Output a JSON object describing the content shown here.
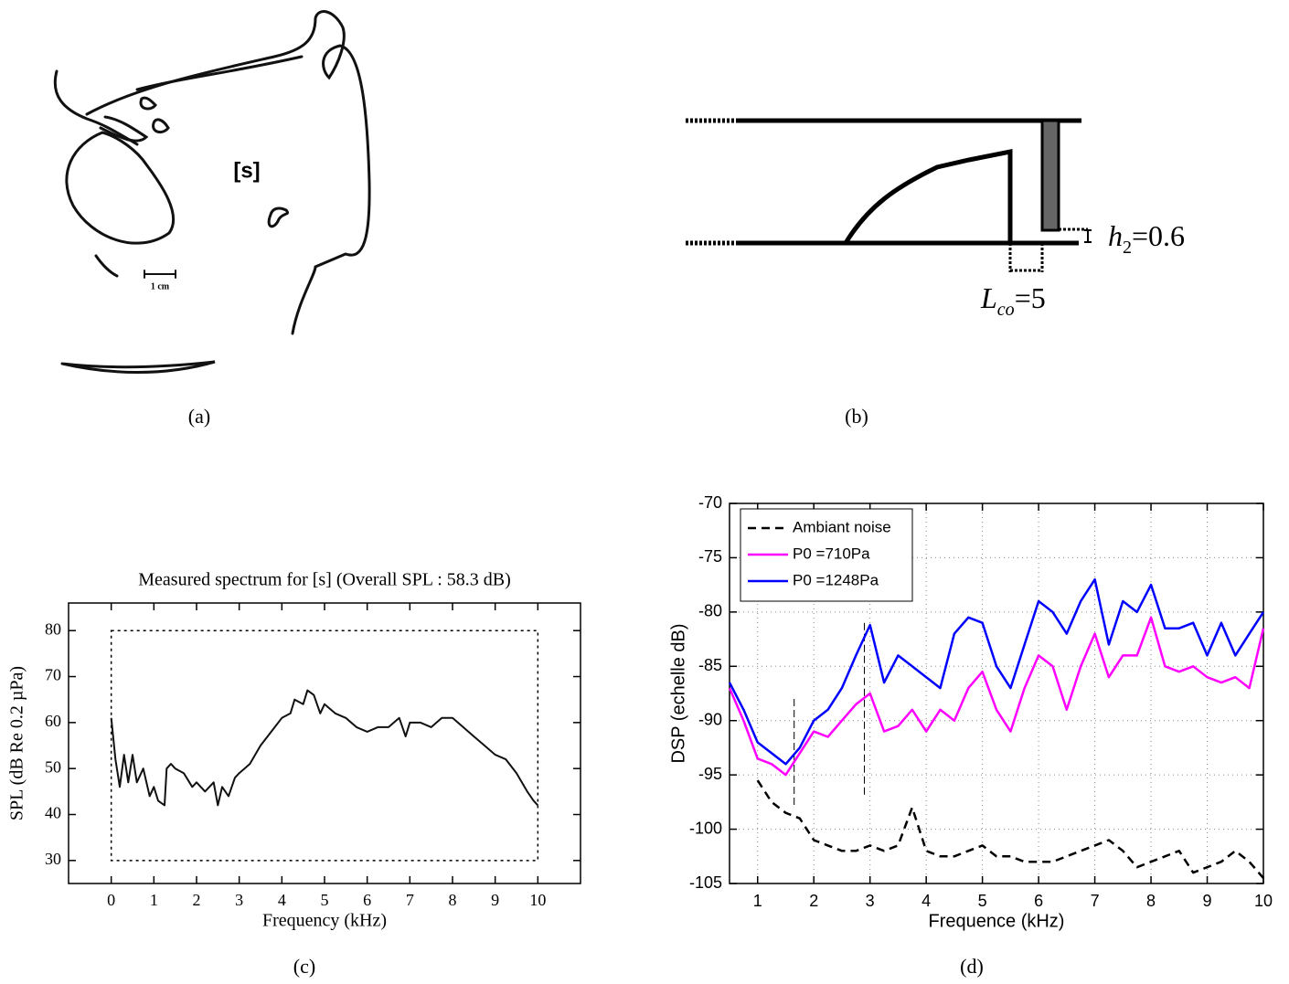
{
  "figure": {
    "captions": [
      "(a)",
      "(b)",
      "(c)",
      "(d)"
    ],
    "sketch": {
      "label": "[s]",
      "scale": "1 cm"
    },
    "diagram": {
      "h_label": {
        "symbol": "h",
        "subscript": "2",
        "value": "=0.6"
      },
      "l_label": {
        "symbol": "L",
        "subscript": "co",
        "value": "=5"
      }
    }
  },
  "chart_data": [
    {
      "type": "line",
      "title": "Measured spectrum for [s] (Overall SPL : 58.3 dB)",
      "x_label": "Frequency (kHz)",
      "y_label": "SPL (dB Re 0.2 µPa)",
      "xlim": [
        -1,
        11
      ],
      "ylim": [
        25,
        86
      ],
      "xticks": [
        0,
        1,
        2,
        3,
        4,
        5,
        6,
        7,
        8,
        9,
        10
      ],
      "yticks": [
        30,
        40,
        50,
        60,
        70,
        80
      ],
      "inner_box": {
        "x": [
          0,
          10
        ],
        "y": [
          30,
          80
        ]
      },
      "x": [
        0,
        0.1,
        0.2,
        0.3,
        0.4,
        0.5,
        0.6,
        0.75,
        0.9,
        1.0,
        1.1,
        1.25,
        1.3,
        1.4,
        1.5,
        1.7,
        1.9,
        2.0,
        2.2,
        2.4,
        2.5,
        2.6,
        2.75,
        2.9,
        3.0,
        3.25,
        3.5,
        3.75,
        4.0,
        4.2,
        4.3,
        4.5,
        4.6,
        4.75,
        4.9,
        5.0,
        5.25,
        5.5,
        5.75,
        6.0,
        6.25,
        6.5,
        6.75,
        6.9,
        7.0,
        7.25,
        7.5,
        7.75,
        8.0,
        8.25,
        8.5,
        8.75,
        9.0,
        9.25,
        9.5,
        9.75,
        9.9,
        10.0
      ],
      "series": [
        {
          "color": "#111111",
          "values": [
            61,
            52,
            46,
            53,
            47,
            53,
            47,
            50,
            44,
            46,
            43,
            42,
            50,
            51,
            50,
            49,
            46,
            47,
            45,
            47,
            42,
            46,
            44,
            48,
            49,
            51,
            55,
            58,
            61,
            62,
            65,
            64,
            67,
            66,
            62,
            64,
            62,
            61,
            59,
            58,
            59,
            59,
            61,
            57,
            60,
            60,
            59,
            61,
            61,
            59,
            57,
            55,
            53,
            52,
            49,
            45,
            43,
            42
          ]
        }
      ]
    },
    {
      "type": "line",
      "x_label": "Frequence (kHz)",
      "y_label": "DSP (echelle dB)",
      "xlim": [
        0.5,
        10
      ],
      "ylim": [
        -105,
        -70
      ],
      "xticks": [
        1,
        2,
        3,
        4,
        5,
        6,
        7,
        8,
        9,
        10
      ],
      "yticks": [
        -70,
        -75,
        -80,
        -85,
        -90,
        -95,
        -100,
        -105
      ],
      "grid": true,
      "legend": "upper-left",
      "vlines": [
        {
          "x": 1.65,
          "y": [
            -88,
            -98
          ]
        },
        {
          "x": 2.9,
          "y": [
            -81,
            -97
          ]
        }
      ],
      "x": [
        0.5,
        0.75,
        1,
        1.25,
        1.5,
        1.75,
        2,
        2.25,
        2.5,
        2.75,
        3,
        3.25,
        3.5,
        3.75,
        4,
        4.25,
        4.5,
        4.75,
        5,
        5.25,
        5.5,
        5.75,
        6,
        6.25,
        6.5,
        6.75,
        7,
        7.25,
        7.5,
        7.75,
        8,
        8.25,
        8.5,
        8.75,
        9,
        9.25,
        9.5,
        9.75,
        10
      ],
      "series": [
        {
          "name": "Ambiant noise",
          "color": "#000000",
          "dashed": true,
          "values": [
            null,
            null,
            -95.5,
            -97.5,
            -98.5,
            -99,
            -101,
            -101.5,
            -102,
            -102,
            -101.5,
            -102,
            -101.5,
            -98,
            -102,
            -102.5,
            -102.5,
            -102,
            -101.5,
            -102.5,
            -102.5,
            -103,
            -103,
            -103,
            -102.5,
            -102,
            -101.5,
            -101,
            -102,
            -103.5,
            -103,
            -102.5,
            -102,
            -104,
            -103.5,
            -103,
            -102,
            -103,
            -104.5
          ]
        },
        {
          "name": "P0 =710Pa",
          "color": "#ff00ff",
          "values": [
            -87,
            -90,
            -93.5,
            -94,
            -95,
            -93,
            -91,
            -91.5,
            -90,
            -88.5,
            -87.5,
            -91,
            -90.5,
            -89,
            -91,
            -89,
            -90,
            -87,
            -85.5,
            -89,
            -91,
            -87,
            -84,
            -85,
            -89,
            -85,
            -82,
            -86,
            -84,
            -84,
            -80.5,
            -85,
            -85.5,
            -85,
            -86,
            -86.5,
            -86,
            -87,
            -81.5
          ]
        },
        {
          "name": "P0 =1248Pa",
          "color": "#0000ff",
          "values": [
            -86.5,
            -89,
            -92,
            -93,
            -94,
            -92.5,
            -90,
            -89,
            -87,
            -84,
            -81.2,
            -86.5,
            -84,
            -85,
            -86,
            -87,
            -82,
            -80.5,
            -81,
            -85,
            -87,
            -83,
            -79,
            -80,
            -82,
            -79,
            -77,
            -83,
            -79,
            -80,
            -77.5,
            -81.5,
            -81.5,
            -81,
            -84,
            -81,
            -84,
            -82,
            -80
          ]
        }
      ]
    }
  ]
}
